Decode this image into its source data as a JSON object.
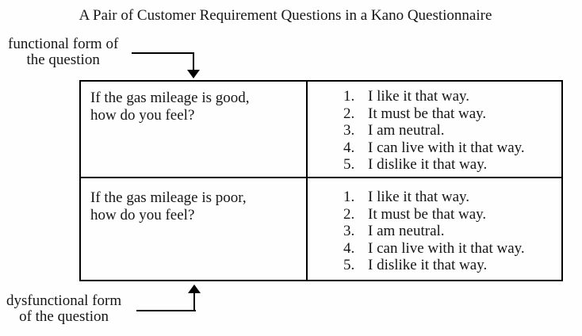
{
  "title": "A Pair of Customer Requirement Questions in a Kano Questionnaire",
  "functional_label": {
    "line1": "functional form of",
    "line2": "the question"
  },
  "dysfunctional_label": {
    "line1": "dysfunctional form",
    "line2": "of the question"
  },
  "table": {
    "rows": [
      {
        "question_line1": "If the gas mileage is good,",
        "question_line2": "how do you feel?",
        "options": [
          {
            "num": "1.",
            "text": "I like it that way."
          },
          {
            "num": "2.",
            "text": "It must be that way."
          },
          {
            "num": "3.",
            "text": "I am neutral."
          },
          {
            "num": "4.",
            "text": "I can live with it that way."
          },
          {
            "num": "5.",
            "text": "I dislike it that way."
          }
        ]
      },
      {
        "question_line1": "If the gas mileage is poor,",
        "question_line2": "how do you feel?",
        "options": [
          {
            "num": "1.",
            "text": "I like it that way."
          },
          {
            "num": "2.",
            "text": "It must be that way."
          },
          {
            "num": "3.",
            "text": "I am neutral."
          },
          {
            "num": "4.",
            "text": "I can live with it that way."
          },
          {
            "num": "5.",
            "text": "I dislike it that way."
          }
        ]
      }
    ]
  },
  "colors": {
    "text": "#161616",
    "line": "#000000",
    "background": "#fefefe"
  }
}
